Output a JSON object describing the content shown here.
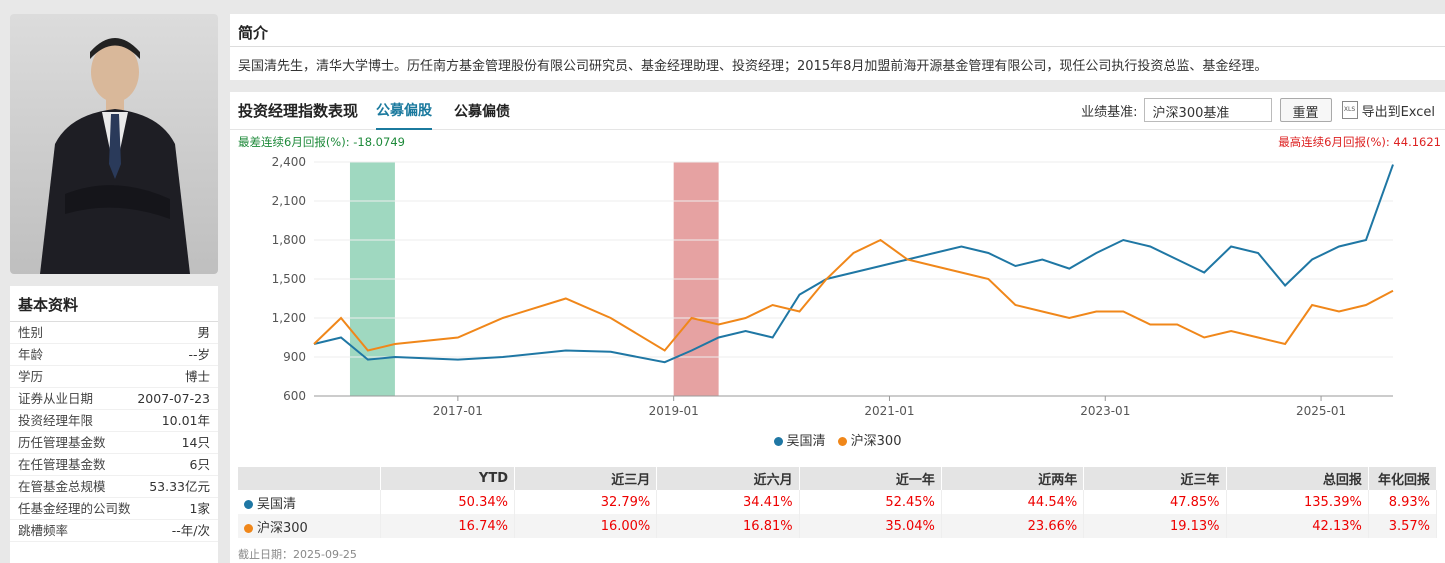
{
  "profile": {
    "title": "基本资料",
    "rows": [
      {
        "k": "性别",
        "v": "男"
      },
      {
        "k": "年龄",
        "v": "--岁"
      },
      {
        "k": "学历",
        "v": "博士"
      },
      {
        "k": "证券从业日期",
        "v": "2007-07-23"
      },
      {
        "k": "投资经理年限",
        "v": "10.01年"
      },
      {
        "k": "历任管理基金数",
        "v": "14只"
      },
      {
        "k": "在任管理基金数",
        "v": "6只"
      },
      {
        "k": "在管基金总规模",
        "v": "53.33亿元"
      },
      {
        "k": "任基金经理的公司数",
        "v": "1家"
      },
      {
        "k": "跳槽频率",
        "v": "--年/次"
      }
    ]
  },
  "intro": {
    "title": "简介",
    "text": "吴国清先生，清华大学博士。历任南方基金管理股份有限公司研究员、基金经理助理、投资经理；2015年8月加盟前海开源基金管理有限公司，现任公司执行投资总监、基金经理。"
  },
  "panel": {
    "title": "投资经理指数表现",
    "tabs": [
      "公募偏股",
      "公募偏债"
    ],
    "benchmark_label": "业绩基准:",
    "benchmark_value": "沪深300基准",
    "reset_label": "重置",
    "export_label": "导出到Excel",
    "export_icon": "xls-icon",
    "worst_text": "最差连续6月回报(%): -18.0749",
    "best_text": "最高连续6月回报(%): 44.1621"
  },
  "colors": {
    "manager": "#1f77a4",
    "index": "#f0871a",
    "worst": "#9fd8c0",
    "best": "#e6a2a2"
  },
  "chart_data": {
    "type": "line",
    "ylim": [
      600,
      2400
    ],
    "yticks": [
      600,
      900,
      1200,
      1500,
      1800,
      2100,
      2400
    ],
    "xticks": [
      "2017-01",
      "2019-01",
      "2021-01",
      "2023-01",
      "2025-01"
    ],
    "xrange": [
      "2015-09",
      "2025-09"
    ],
    "bands": [
      {
        "name": "worst",
        "from": "2016-01",
        "to": "2016-06"
      },
      {
        "name": "best",
        "from": "2019-01",
        "to": "2019-06"
      }
    ],
    "series": [
      {
        "name": "吴国清",
        "x": [
          "2015-09",
          "2015-12",
          "2016-03",
          "2016-06",
          "2017-01",
          "2017-06",
          "2018-01",
          "2018-06",
          "2018-12",
          "2019-03",
          "2019-06",
          "2019-09",
          "2019-12",
          "2020-03",
          "2020-06",
          "2020-09",
          "2020-12",
          "2021-03",
          "2021-06",
          "2021-09",
          "2021-12",
          "2022-03",
          "2022-06",
          "2022-09",
          "2022-12",
          "2023-03",
          "2023-06",
          "2023-09",
          "2023-12",
          "2024-03",
          "2024-06",
          "2024-09",
          "2024-12",
          "2025-03",
          "2025-06",
          "2025-09"
        ],
        "values": [
          1000,
          1050,
          880,
          900,
          880,
          900,
          950,
          940,
          860,
          950,
          1050,
          1100,
          1050,
          1380,
          1500,
          1550,
          1600,
          1650,
          1700,
          1750,
          1700,
          1600,
          1650,
          1580,
          1700,
          1800,
          1750,
          1650,
          1550,
          1750,
          1700,
          1450,
          1650,
          1750,
          1800,
          2380
        ]
      },
      {
        "name": "沪深300",
        "x": [
          "2015-09",
          "2015-12",
          "2016-03",
          "2016-06",
          "2017-01",
          "2017-06",
          "2018-01",
          "2018-06",
          "2018-12",
          "2019-03",
          "2019-06",
          "2019-09",
          "2019-12",
          "2020-03",
          "2020-06",
          "2020-09",
          "2020-12",
          "2021-03",
          "2021-06",
          "2021-09",
          "2021-12",
          "2022-03",
          "2022-06",
          "2022-09",
          "2022-12",
          "2023-03",
          "2023-06",
          "2023-09",
          "2023-12",
          "2024-03",
          "2024-06",
          "2024-09",
          "2024-12",
          "2025-03",
          "2025-06",
          "2025-09"
        ],
        "values": [
          1000,
          1200,
          950,
          1000,
          1050,
          1200,
          1350,
          1200,
          950,
          1200,
          1150,
          1200,
          1300,
          1250,
          1500,
          1700,
          1800,
          1650,
          1600,
          1550,
          1500,
          1300,
          1250,
          1200,
          1250,
          1250,
          1150,
          1150,
          1050,
          1100,
          1050,
          1000,
          1300,
          1250,
          1300,
          1410
        ]
      }
    ]
  },
  "table": {
    "headers": [
      "",
      "YTD",
      "近三月",
      "近六月",
      "近一年",
      "近两年",
      "近三年",
      "总回报",
      "年化回报"
    ],
    "rows": [
      {
        "name": "吴国清",
        "vals": [
          "50.34%",
          "32.79%",
          "34.41%",
          "52.45%",
          "44.54%",
          "47.85%",
          "135.39%",
          "8.93%"
        ]
      },
      {
        "name": "沪深300",
        "vals": [
          "16.74%",
          "16.00%",
          "16.81%",
          "35.04%",
          "23.66%",
          "19.13%",
          "42.13%",
          "3.57%"
        ]
      }
    ],
    "as_of": "截止日期：2025-09-25"
  }
}
